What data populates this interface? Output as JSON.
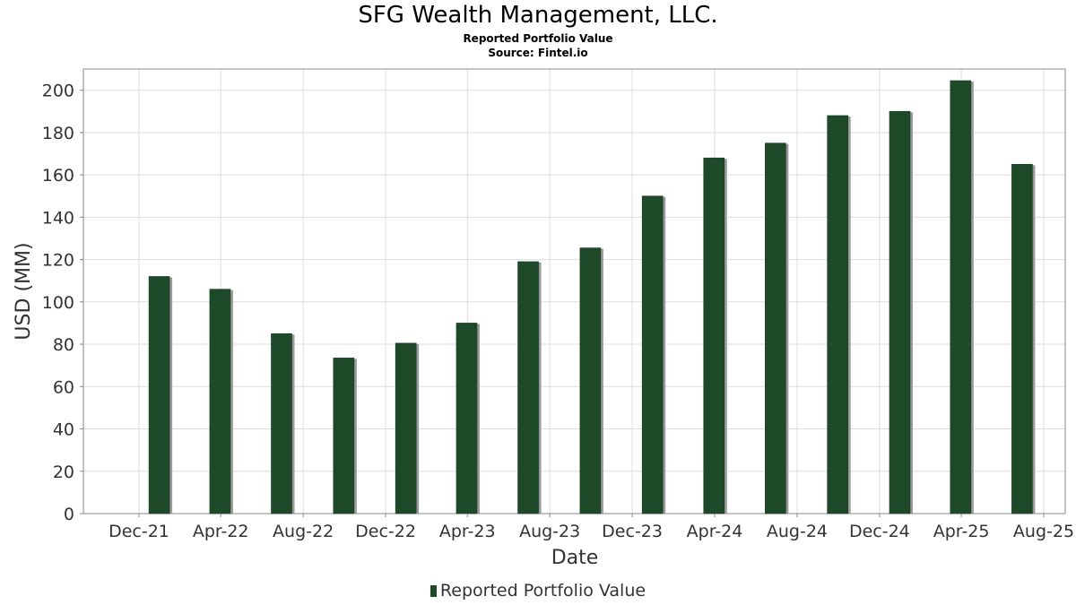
{
  "chart_data": {
    "type": "bar",
    "title": "SFG Wealth Management, LLC.",
    "subtitle": "Reported Portfolio Value",
    "source": "Source: Fintel.io",
    "xlabel": "Date",
    "ylabel": "USD (MM)",
    "ylim": [
      0,
      210
    ],
    "y_ticks": [
      0,
      20,
      40,
      60,
      80,
      100,
      120,
      140,
      160,
      180,
      200
    ],
    "x_ticks": [
      "Dec-21",
      "Apr-22",
      "Aug-22",
      "Dec-22",
      "Apr-23",
      "Aug-23",
      "Dec-23",
      "Apr-24",
      "Aug-24",
      "Dec-24",
      "Apr-25",
      "Aug-25"
    ],
    "grid": true,
    "legend_position": "bottom",
    "bar_color": "#1f4a2a",
    "series": [
      {
        "name": "Reported Portfolio Value",
        "points": [
          {
            "date": "2021-12-31",
            "value": 112
          },
          {
            "date": "2022-03-31",
            "value": 106
          },
          {
            "date": "2022-06-30",
            "value": 85
          },
          {
            "date": "2022-09-30",
            "value": 73.5
          },
          {
            "date": "2022-12-31",
            "value": 80.5
          },
          {
            "date": "2023-03-31",
            "value": 90
          },
          {
            "date": "2023-06-30",
            "value": 119
          },
          {
            "date": "2023-09-30",
            "value": 125.5
          },
          {
            "date": "2023-12-31",
            "value": 150
          },
          {
            "date": "2024-03-31",
            "value": 168
          },
          {
            "date": "2024-06-30",
            "value": 175
          },
          {
            "date": "2024-09-30",
            "value": 188
          },
          {
            "date": "2024-12-31",
            "value": 190
          },
          {
            "date": "2025-03-31",
            "value": 204.5
          },
          {
            "date": "2025-06-30",
            "value": 165
          }
        ]
      }
    ]
  }
}
